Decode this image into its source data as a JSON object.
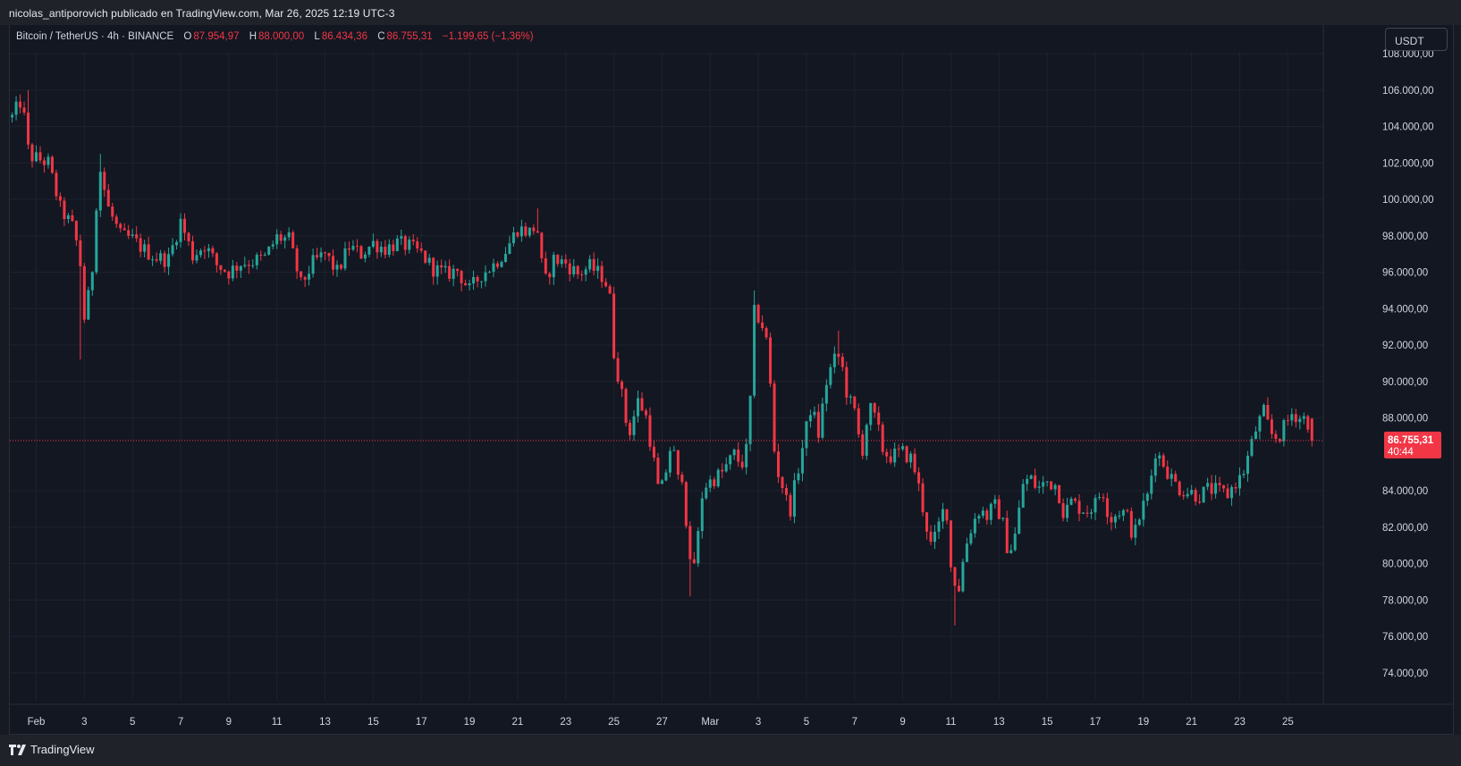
{
  "header": {
    "published_text": "nicolas_antiporovich publicado en TradingView.com, Mar 26, 2025 12:19 UTC-3"
  },
  "legend": {
    "symbol": "Bitcoin / TetherUS · 4h · BINANCE",
    "open_label": "O",
    "open": "87.954,97",
    "high_label": "H",
    "high": "88.000,00",
    "low_label": "L",
    "low": "86.434,36",
    "close_label": "C",
    "close": "86.755,31",
    "change": "−1.199,65 (−1,36%)"
  },
  "currency_button": "USDT",
  "price_tag": {
    "price": "86.755,31",
    "countdown": "40:44"
  },
  "footer": {
    "brand": "TradingView"
  },
  "colors": {
    "up": "#26a69a",
    "down": "#f23645",
    "background": "#131722",
    "grid": "#1e222d",
    "text": "#d1d4dc"
  },
  "chart_data": {
    "type": "candlestick",
    "timeframe": "4h",
    "ylim": [
      73000,
      108000
    ],
    "y_ticks": [
      {
        "value": 108000,
        "label": "108.000,00"
      },
      {
        "value": 106000,
        "label": "106.000,00"
      },
      {
        "value": 104000,
        "label": "104.000,00"
      },
      {
        "value": 102000,
        "label": "102.000,00"
      },
      {
        "value": 100000,
        "label": "100.000,00"
      },
      {
        "value": 98000,
        "label": "98.000,00"
      },
      {
        "value": 96000,
        "label": "96.000,00"
      },
      {
        "value": 94000,
        "label": "94.000,00"
      },
      {
        "value": 92000,
        "label": "92.000,00"
      },
      {
        "value": 90000,
        "label": "90.000,00"
      },
      {
        "value": 88000,
        "label": "88.000,00"
      },
      {
        "value": 84000,
        "label": "84.000,00"
      },
      {
        "value": 82000,
        "label": "82.000,00"
      },
      {
        "value": 80000,
        "label": "80.000,00"
      },
      {
        "value": 78000,
        "label": "78.000,00"
      },
      {
        "value": 76000,
        "label": "76.000,00"
      },
      {
        "value": 74000,
        "label": "74.000,00"
      }
    ],
    "x_ticks": [
      {
        "day": 0,
        "label": "Feb"
      },
      {
        "day": 2,
        "label": "3"
      },
      {
        "day": 4,
        "label": "5"
      },
      {
        "day": 6,
        "label": "7"
      },
      {
        "day": 8,
        "label": "9"
      },
      {
        "day": 10,
        "label": "11"
      },
      {
        "day": 12,
        "label": "13"
      },
      {
        "day": 14,
        "label": "15"
      },
      {
        "day": 16,
        "label": "17"
      },
      {
        "day": 18,
        "label": "19"
      },
      {
        "day": 20,
        "label": "21"
      },
      {
        "day": 22,
        "label": "23"
      },
      {
        "day": 24,
        "label": "25"
      },
      {
        "day": 26,
        "label": "27"
      },
      {
        "day": 28,
        "label": "Mar"
      },
      {
        "day": 30,
        "label": "3"
      },
      {
        "day": 32,
        "label": "5"
      },
      {
        "day": 34,
        "label": "7"
      },
      {
        "day": 36,
        "label": "9"
      },
      {
        "day": 38,
        "label": "11"
      },
      {
        "day": 40,
        "label": "13"
      },
      {
        "day": 42,
        "label": "15"
      },
      {
        "day": 44,
        "label": "17"
      },
      {
        "day": 46,
        "label": "19"
      },
      {
        "day": 48,
        "label": "21"
      },
      {
        "day": 50,
        "label": "23"
      },
      {
        "day": 52,
        "label": "25"
      }
    ],
    "last_price": 86755.31,
    "start_day": -1.0,
    "close_path": [
      [
        -1.0,
        104500
      ],
      [
        -0.6,
        105500
      ],
      [
        -0.3,
        102400
      ],
      [
        0.5,
        102000
      ],
      [
        1.0,
        99500
      ],
      [
        1.5,
        98500
      ],
      [
        1.8,
        97000
      ],
      [
        2.0,
        93500
      ],
      [
        2.3,
        95500
      ],
      [
        2.6,
        102000
      ],
      [
        3.0,
        99500
      ],
      [
        3.5,
        98000
      ],
      [
        4.0,
        97800
      ],
      [
        4.5,
        97200
      ],
      [
        5.0,
        96800
      ],
      [
        5.5,
        96700
      ],
      [
        6.0,
        98800
      ],
      [
        6.5,
        96900
      ],
      [
        7.0,
        97500
      ],
      [
        7.5,
        96400
      ],
      [
        8.0,
        96000
      ],
      [
        8.5,
        96500
      ],
      [
        9.0,
        96600
      ],
      [
        9.5,
        96800
      ],
      [
        10.0,
        97900
      ],
      [
        10.5,
        97800
      ],
      [
        11.0,
        95300
      ],
      [
        11.5,
        96500
      ],
      [
        12.0,
        97000
      ],
      [
        12.5,
        96000
      ],
      [
        13.0,
        97400
      ],
      [
        13.5,
        97000
      ],
      [
        14.0,
        97600
      ],
      [
        14.5,
        97300
      ],
      [
        15.0,
        97600
      ],
      [
        15.5,
        97400
      ],
      [
        16.0,
        97000
      ],
      [
        16.5,
        96200
      ],
      [
        17.0,
        95900
      ],
      [
        17.5,
        96100
      ],
      [
        18.0,
        95000
      ],
      [
        18.5,
        95900
      ],
      [
        19.0,
        96400
      ],
      [
        19.5,
        97200
      ],
      [
        20.0,
        98400
      ],
      [
        20.5,
        98200
      ],
      [
        20.8,
        98600
      ],
      [
        21.1,
        95300
      ],
      [
        21.5,
        96700
      ],
      [
        22.0,
        96500
      ],
      [
        22.5,
        95900
      ],
      [
        23.0,
        96300
      ],
      [
        23.5,
        95800
      ],
      [
        23.8,
        95100
      ],
      [
        24.0,
        91600
      ],
      [
        24.3,
        89500
      ],
      [
        24.6,
        87000
      ],
      [
        25.0,
        88900
      ],
      [
        25.3,
        88300
      ],
      [
        25.6,
        86100
      ],
      [
        25.9,
        83600
      ],
      [
        26.2,
        85300
      ],
      [
        26.4,
        86800
      ],
      [
        26.7,
        84300
      ],
      [
        26.9,
        85200
      ],
      [
        27.1,
        79700
      ],
      [
        27.4,
        80200
      ],
      [
        27.7,
        84200
      ],
      [
        28.0,
        84500
      ],
      [
        28.5,
        85000
      ],
      [
        29.0,
        86000
      ],
      [
        29.3,
        85400
      ],
      [
        29.6,
        86600
      ],
      [
        29.8,
        93800
      ],
      [
        30.1,
        93400
      ],
      [
        30.4,
        91900
      ],
      [
        30.7,
        85500
      ],
      [
        31.0,
        84300
      ],
      [
        31.3,
        82800
      ],
      [
        31.6,
        84800
      ],
      [
        31.9,
        86800
      ],
      [
        32.2,
        88700
      ],
      [
        32.5,
        87100
      ],
      [
        32.8,
        89800
      ],
      [
        33.1,
        91100
      ],
      [
        33.4,
        91400
      ],
      [
        33.7,
        89200
      ],
      [
        34.0,
        88300
      ],
      [
        34.3,
        86000
      ],
      [
        34.6,
        88600
      ],
      [
        34.9,
        87800
      ],
      [
        35.2,
        86100
      ],
      [
        35.5,
        85900
      ],
      [
        36.0,
        86100
      ],
      [
        36.4,
        85700
      ],
      [
        36.7,
        84000
      ],
      [
        36.9,
        82600
      ],
      [
        37.2,
        80800
      ],
      [
        37.5,
        82100
      ],
      [
        37.8,
        83400
      ],
      [
        38.0,
        79800
      ],
      [
        38.3,
        78400
      ],
      [
        38.6,
        80900
      ],
      [
        38.9,
        82200
      ],
      [
        39.2,
        83000
      ],
      [
        39.5,
        82600
      ],
      [
        39.8,
        83200
      ],
      [
        40.1,
        82600
      ],
      [
        40.4,
        80500
      ],
      [
        40.7,
        81700
      ],
      [
        41.0,
        84400
      ],
      [
        41.3,
        84700
      ],
      [
        41.6,
        84100
      ],
      [
        42.0,
        84500
      ],
      [
        42.4,
        84300
      ],
      [
        42.7,
        82700
      ],
      [
        43.0,
        83400
      ],
      [
        43.3,
        83100
      ],
      [
        43.7,
        82900
      ],
      [
        44.0,
        83300
      ],
      [
        44.3,
        84100
      ],
      [
        44.6,
        82400
      ],
      [
        45.0,
        82900
      ],
      [
        45.3,
        82700
      ],
      [
        45.6,
        81400
      ],
      [
        45.9,
        82900
      ],
      [
        46.2,
        83800
      ],
      [
        46.5,
        86200
      ],
      [
        46.8,
        85600
      ],
      [
        47.1,
        84800
      ],
      [
        47.5,
        84100
      ],
      [
        48.0,
        83900
      ],
      [
        48.3,
        83700
      ],
      [
        48.7,
        84100
      ],
      [
        49.0,
        84000
      ],
      [
        49.5,
        83800
      ],
      [
        49.8,
        84400
      ],
      [
        50.1,
        84800
      ],
      [
        50.4,
        86100
      ],
      [
        50.7,
        87500
      ],
      [
        51.0,
        88300
      ],
      [
        51.3,
        87100
      ],
      [
        51.6,
        86900
      ],
      [
        51.9,
        87600
      ],
      [
        52.2,
        88300
      ],
      [
        52.5,
        88000
      ],
      [
        52.8,
        87954.97
      ],
      [
        53.0,
        86755.31
      ]
    ],
    "extremes": [
      {
        "day": -0.4,
        "high": 106000
      },
      {
        "day": 1.9,
        "low": 91200
      },
      {
        "day": 2.7,
        "high": 102500
      },
      {
        "day": 27.1,
        "low": 78200
      },
      {
        "day": 29.8,
        "high": 95000
      },
      {
        "day": 33.4,
        "high": 92800
      },
      {
        "day": 38.2,
        "low": 76600
      },
      {
        "day": 20.9,
        "high": 99500
      },
      {
        "day": 51.0,
        "high": 88800
      }
    ]
  }
}
